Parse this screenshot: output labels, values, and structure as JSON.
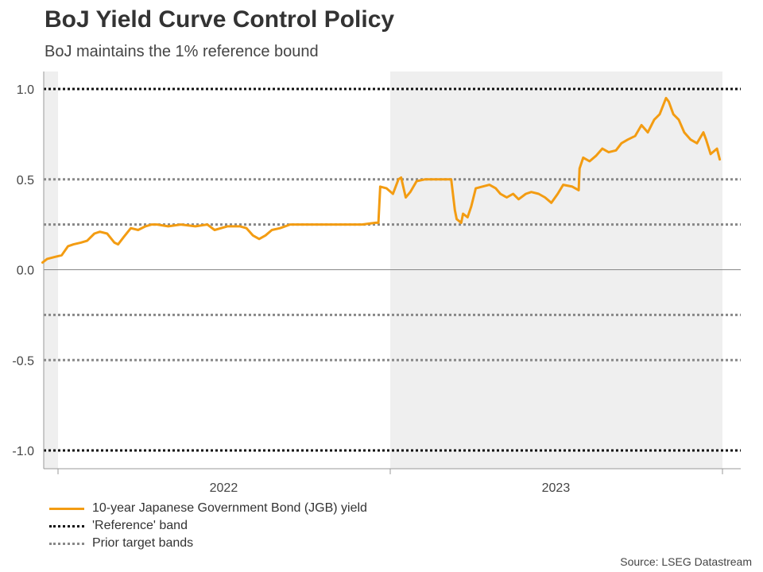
{
  "header": {
    "title": "BoJ Yield Curve Control Policy",
    "subtitle": "BoJ maintains the 1% reference bound"
  },
  "legend": [
    {
      "label": "10-year Japanese Government Bond (JGB) yield",
      "color": "#f39c12",
      "style": "solid"
    },
    {
      "label": "'Reference' band",
      "color": "#111111",
      "style": "dotted"
    },
    {
      "label": "Prior target bands",
      "color": "#888888",
      "style": "dotted"
    }
  ],
  "source": "Source: LSEG Datastream",
  "chart_data": {
    "type": "line",
    "title": "BoJ Yield Curve Control Policy",
    "subtitle": "BoJ maintains the 1% reference bound",
    "xlabel": "",
    "ylabel": "",
    "xlim": [
      "2021-12-15",
      "2024-01-20"
    ],
    "ylim": [
      -1.1,
      1.1
    ],
    "y_ticks": [
      1.0,
      0.5,
      0.0,
      -0.5,
      -1.0
    ],
    "y_tick_labels": [
      "1.0",
      "0.5",
      "0.0",
      "-0.5",
      "-1.0"
    ],
    "x_tick_dates": [
      "2022-01-01",
      "2023-01-01",
      "2024-01-01"
    ],
    "x_period_labels": [
      {
        "label": "2022",
        "date": "2022-07-02"
      },
      {
        "label": "2023",
        "date": "2023-07-02"
      }
    ],
    "shaded_periods": [
      [
        "2021-12-15",
        "2022-01-01"
      ],
      [
        "2023-01-01",
        "2024-01-01"
      ]
    ],
    "grid": false,
    "legend_position": "bottom-left",
    "reference_lines": [
      {
        "name": "'Reference' band",
        "values": [
          1.0,
          -1.0
        ],
        "color": "#111111",
        "style": "dotted"
      },
      {
        "name": "Prior target bands",
        "values": [
          0.5,
          0.25,
          -0.25,
          -0.5
        ],
        "color": "#888888",
        "style": "dotted"
      }
    ],
    "series": [
      {
        "name": "10-year Japanese Government Bond (JGB) yield",
        "color": "#f39c12",
        "points": [
          [
            "2021-12-15",
            0.04
          ],
          [
            "2021-12-20",
            0.06
          ],
          [
            "2021-12-28",
            0.07
          ],
          [
            "2022-01-05",
            0.08
          ],
          [
            "2022-01-12",
            0.13
          ],
          [
            "2022-01-18",
            0.14
          ],
          [
            "2022-01-26",
            0.15
          ],
          [
            "2022-02-02",
            0.16
          ],
          [
            "2022-02-10",
            0.2
          ],
          [
            "2022-02-16",
            0.21
          ],
          [
            "2022-02-24",
            0.2
          ],
          [
            "2022-03-04",
            0.15
          ],
          [
            "2022-03-08",
            0.14
          ],
          [
            "2022-03-14",
            0.18
          ],
          [
            "2022-03-22",
            0.23
          ],
          [
            "2022-03-30",
            0.22
          ],
          [
            "2022-04-07",
            0.24
          ],
          [
            "2022-04-14",
            0.25
          ],
          [
            "2022-04-20",
            0.25
          ],
          [
            "2022-05-02",
            0.24
          ],
          [
            "2022-05-16",
            0.25
          ],
          [
            "2022-06-01",
            0.24
          ],
          [
            "2022-06-14",
            0.25
          ],
          [
            "2022-06-22",
            0.22
          ],
          [
            "2022-07-06",
            0.24
          ],
          [
            "2022-07-20",
            0.24
          ],
          [
            "2022-07-27",
            0.23
          ],
          [
            "2022-08-03",
            0.19
          ],
          [
            "2022-08-10",
            0.17
          ],
          [
            "2022-08-17",
            0.19
          ],
          [
            "2022-08-24",
            0.22
          ],
          [
            "2022-09-02",
            0.23
          ],
          [
            "2022-09-13",
            0.25
          ],
          [
            "2022-09-21",
            0.25
          ],
          [
            "2022-10-04",
            0.25
          ],
          [
            "2022-10-18",
            0.25
          ],
          [
            "2022-11-01",
            0.25
          ],
          [
            "2022-11-15",
            0.25
          ],
          [
            "2022-12-01",
            0.25
          ],
          [
            "2022-12-16",
            0.26
          ],
          [
            "2022-12-19",
            0.26
          ],
          [
            "2022-12-21",
            0.46
          ],
          [
            "2022-12-28",
            0.45
          ],
          [
            "2023-01-04",
            0.42
          ],
          [
            "2023-01-10",
            0.5
          ],
          [
            "2023-01-13",
            0.51
          ],
          [
            "2023-01-18",
            0.4
          ],
          [
            "2023-01-23",
            0.43
          ],
          [
            "2023-01-30",
            0.49
          ],
          [
            "2023-02-08",
            0.5
          ],
          [
            "2023-02-20",
            0.5
          ],
          [
            "2023-03-02",
            0.5
          ],
          [
            "2023-03-09",
            0.5
          ],
          [
            "2023-03-13",
            0.33
          ],
          [
            "2023-03-15",
            0.28
          ],
          [
            "2023-03-20",
            0.26
          ],
          [
            "2023-03-22",
            0.31
          ],
          [
            "2023-03-27",
            0.29
          ],
          [
            "2023-03-31",
            0.35
          ],
          [
            "2023-04-05",
            0.45
          ],
          [
            "2023-04-12",
            0.46
          ],
          [
            "2023-04-20",
            0.47
          ],
          [
            "2023-04-27",
            0.45
          ],
          [
            "2023-05-02",
            0.42
          ],
          [
            "2023-05-09",
            0.4
          ],
          [
            "2023-05-16",
            0.42
          ],
          [
            "2023-05-22",
            0.39
          ],
          [
            "2023-05-30",
            0.42
          ],
          [
            "2023-06-05",
            0.43
          ],
          [
            "2023-06-13",
            0.42
          ],
          [
            "2023-06-20",
            0.4
          ],
          [
            "2023-06-27",
            0.37
          ],
          [
            "2023-07-04",
            0.42
          ],
          [
            "2023-07-10",
            0.47
          ],
          [
            "2023-07-20",
            0.46
          ],
          [
            "2023-07-27",
            0.44
          ],
          [
            "2023-07-28",
            0.56
          ],
          [
            "2023-08-01",
            0.62
          ],
          [
            "2023-08-08",
            0.6
          ],
          [
            "2023-08-15",
            0.63
          ],
          [
            "2023-08-22",
            0.67
          ],
          [
            "2023-08-29",
            0.65
          ],
          [
            "2023-09-06",
            0.66
          ],
          [
            "2023-09-12",
            0.7
          ],
          [
            "2023-09-19",
            0.72
          ],
          [
            "2023-09-27",
            0.74
          ],
          [
            "2023-10-04",
            0.8
          ],
          [
            "2023-10-11",
            0.76
          ],
          [
            "2023-10-18",
            0.83
          ],
          [
            "2023-10-24",
            0.86
          ],
          [
            "2023-10-31",
            0.95
          ],
          [
            "2023-11-03",
            0.93
          ],
          [
            "2023-11-08",
            0.86
          ],
          [
            "2023-11-14",
            0.83
          ],
          [
            "2023-11-20",
            0.76
          ],
          [
            "2023-11-27",
            0.72
          ],
          [
            "2023-12-04",
            0.7
          ],
          [
            "2023-12-11",
            0.76
          ],
          [
            "2023-12-14",
            0.72
          ],
          [
            "2023-12-19",
            0.64
          ],
          [
            "2023-12-26",
            0.67
          ],
          [
            "2023-12-29",
            0.61
          ]
        ]
      }
    ]
  }
}
